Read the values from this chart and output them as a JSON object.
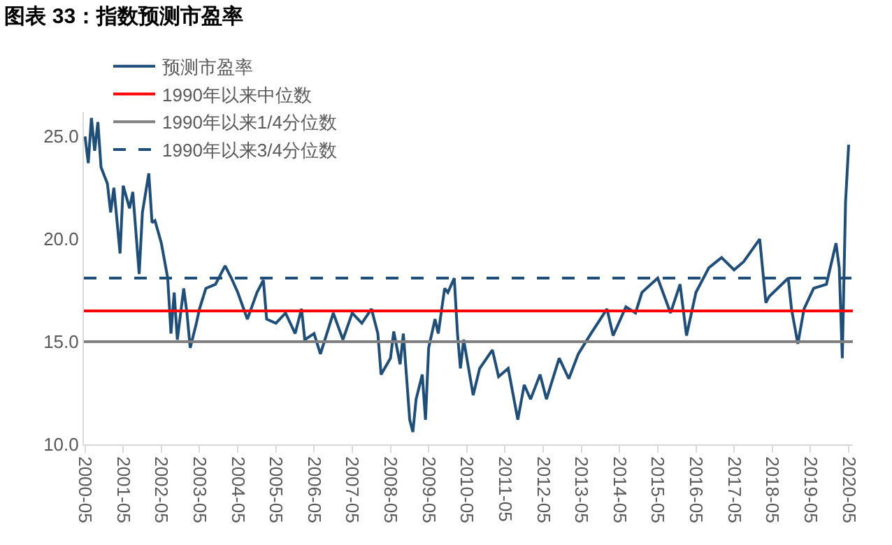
{
  "chart_data": {
    "type": "line",
    "title": "图表 33：指数预测市盈率",
    "x": [
      "2000-05",
      "2000-06",
      "2000-07",
      "2000-08",
      "2000-09",
      "2000-10",
      "2000-12",
      "2001-01",
      "2001-02",
      "2001-04",
      "2001-05",
      "2001-07",
      "2001-08",
      "2001-10",
      "2001-11",
      "2002-01",
      "2002-02",
      "2002-03",
      "2002-05",
      "2002-07",
      "2002-08",
      "2002-09",
      "2002-10",
      "2002-12",
      "2003-01",
      "2003-02",
      "2003-04",
      "2003-05",
      "2003-07",
      "2003-10",
      "2004-01",
      "2004-03",
      "2004-05",
      "2004-08",
      "2004-11",
      "2005-01",
      "2005-02",
      "2005-05",
      "2005-08",
      "2005-11",
      "2006-01",
      "2006-02",
      "2006-05",
      "2006-07",
      "2006-11",
      "2007-02",
      "2007-05",
      "2007-08",
      "2007-11",
      "2008-01",
      "2008-02",
      "2008-05",
      "2008-06",
      "2008-08",
      "2008-09",
      "2008-11",
      "2008-12",
      "2009-01",
      "2009-03",
      "2009-04",
      "2009-05",
      "2009-07",
      "2009-08",
      "2009-10",
      "2009-11",
      "2010-01",
      "2010-02",
      "2010-03",
      "2010-04",
      "2010-07",
      "2010-09",
      "2011-01",
      "2011-03",
      "2011-06",
      "2011-09",
      "2011-11",
      "2012-01",
      "2012-04",
      "2012-06",
      "2012-10",
      "2013-01",
      "2013-04",
      "2013-08",
      "2014-01",
      "2014-03",
      "2014-07",
      "2014-10",
      "2014-12",
      "2015-05",
      "2015-09",
      "2015-12",
      "2016-02",
      "2016-05",
      "2016-09",
      "2017-01",
      "2017-05",
      "2017-08",
      "2018-01",
      "2018-03",
      "2018-04",
      "2018-10",
      "2018-11",
      "2019-01",
      "2019-03",
      "2019-06",
      "2019-10",
      "2020-01",
      "2020-02",
      "2020-03",
      "2020-04",
      "2020-05"
    ],
    "series": [
      {
        "name": "预测市盈率",
        "color": "#1f4e79",
        "values": [
          25.0,
          23.7,
          25.9,
          24.3,
          25.7,
          23.5,
          22.7,
          21.3,
          22.5,
          19.3,
          22.6,
          21.5,
          22.3,
          18.3,
          21.3,
          23.2,
          20.8,
          20.9,
          19.8,
          18.1,
          15.4,
          17.4,
          15.1,
          17.6,
          16.4,
          14.7,
          15.9,
          16.6,
          17.6,
          17.8,
          18.7,
          18.1,
          17.4,
          16.1,
          17.4,
          18.0,
          16.1,
          15.9,
          16.4,
          15.4,
          16.6,
          15.1,
          15.4,
          14.4,
          16.4,
          15.1,
          16.4,
          15.9,
          16.6,
          15.4,
          13.4,
          14.2,
          15.5,
          13.9,
          15.4,
          11.2,
          10.6,
          12.2,
          13.4,
          11.2,
          14.7,
          16.1,
          15.4,
          17.6,
          17.4,
          18.1,
          15.4,
          13.7,
          15.1,
          12.4,
          13.7,
          14.6,
          13.3,
          13.7,
          11.2,
          12.9,
          12.2,
          13.4,
          12.2,
          14.2,
          13.2,
          14.4,
          15.4,
          16.6,
          15.3,
          16.7,
          16.4,
          17.4,
          18.1,
          16.4,
          17.8,
          15.3,
          17.4,
          18.6,
          19.1,
          18.5,
          18.9,
          20.0,
          16.9,
          17.2,
          18.1,
          16.6,
          14.9,
          16.6,
          17.6,
          17.8,
          19.8,
          18.6,
          14.2,
          21.8,
          24.6
        ]
      }
    ],
    "ref_lines": [
      {
        "axis": "y",
        "value": 16.5,
        "label": "1990年以来中位数",
        "color": "#ff0000",
        "line_style": "solid"
      },
      {
        "axis": "y",
        "value": 15.0,
        "label": "1990年以来1/4分位数",
        "color": "#808080",
        "line_style": "solid"
      },
      {
        "axis": "y",
        "value": 18.1,
        "label": "1990年以来3/4分位数",
        "color": "#1f4e79",
        "line_style": "dashed"
      }
    ],
    "xlim": [
      "2000-04-20",
      "2020-06-10"
    ],
    "xticks": [
      "2000-05",
      "2001-05",
      "2002-05",
      "2003-05",
      "2004-05",
      "2005-05",
      "2006-05",
      "2007-05",
      "2008-05",
      "2009-05",
      "2010-05",
      "2011-05",
      "2012-05",
      "2013-05",
      "2014-05",
      "2015-05",
      "2016-05",
      "2017-05",
      "2018-05",
      "2019-05",
      "2020-05"
    ],
    "ylim": [
      10,
      26.2
    ],
    "yticks": [
      {
        "value": 10,
        "label": "10.0"
      },
      {
        "value": 15,
        "label": "15.0"
      },
      {
        "value": 20,
        "label": "20.0"
      },
      {
        "value": 25,
        "label": "25.0"
      }
    ],
    "grid": false,
    "legend": "top",
    "marker": "none",
    "line_style": "solid"
  }
}
